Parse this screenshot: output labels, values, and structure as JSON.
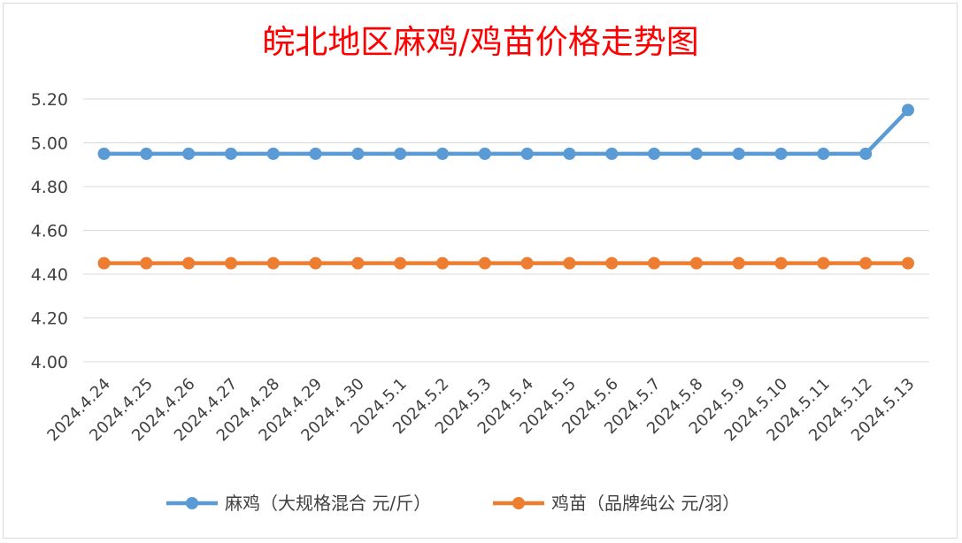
{
  "chart_data": {
    "type": "line",
    "title": "皖北地区麻鸡/鸡苗价格走势图",
    "categories": [
      "2024.4.24",
      "2024.4.25",
      "2024.4.26",
      "2024.4.27",
      "2024.4.28",
      "2024.4.29",
      "2024.4.30",
      "2024.5.1",
      "2024.5.2",
      "2024.5.3",
      "2024.5.4",
      "2024.5.5",
      "2024.5.6",
      "2024.5.7",
      "2024.5.8",
      "2024.5.9",
      "2024.5.10",
      "2024.5.11",
      "2024.5.12",
      "2024.5.13"
    ],
    "series": [
      {
        "name": "麻鸡（大规格混合 元/斤）",
        "color": "#5b9bd5",
        "values": [
          4.95,
          4.95,
          4.95,
          4.95,
          4.95,
          4.95,
          4.95,
          4.95,
          4.95,
          4.95,
          4.95,
          4.95,
          4.95,
          4.95,
          4.95,
          4.95,
          4.95,
          4.95,
          4.95,
          5.15
        ]
      },
      {
        "name": "鸡苗（品牌纯公 元/羽）",
        "color": "#ed7d31",
        "values": [
          4.45,
          4.45,
          4.45,
          4.45,
          4.45,
          4.45,
          4.45,
          4.45,
          4.45,
          4.45,
          4.45,
          4.45,
          4.45,
          4.45,
          4.45,
          4.45,
          4.45,
          4.45,
          4.45,
          4.45
        ]
      }
    ],
    "yticks": [
      "4.00",
      "4.20",
      "4.40",
      "4.60",
      "4.80",
      "5.00",
      "5.20"
    ],
    "ylim": [
      4.0,
      5.2
    ],
    "grid": true,
    "legend_position": "bottom"
  }
}
